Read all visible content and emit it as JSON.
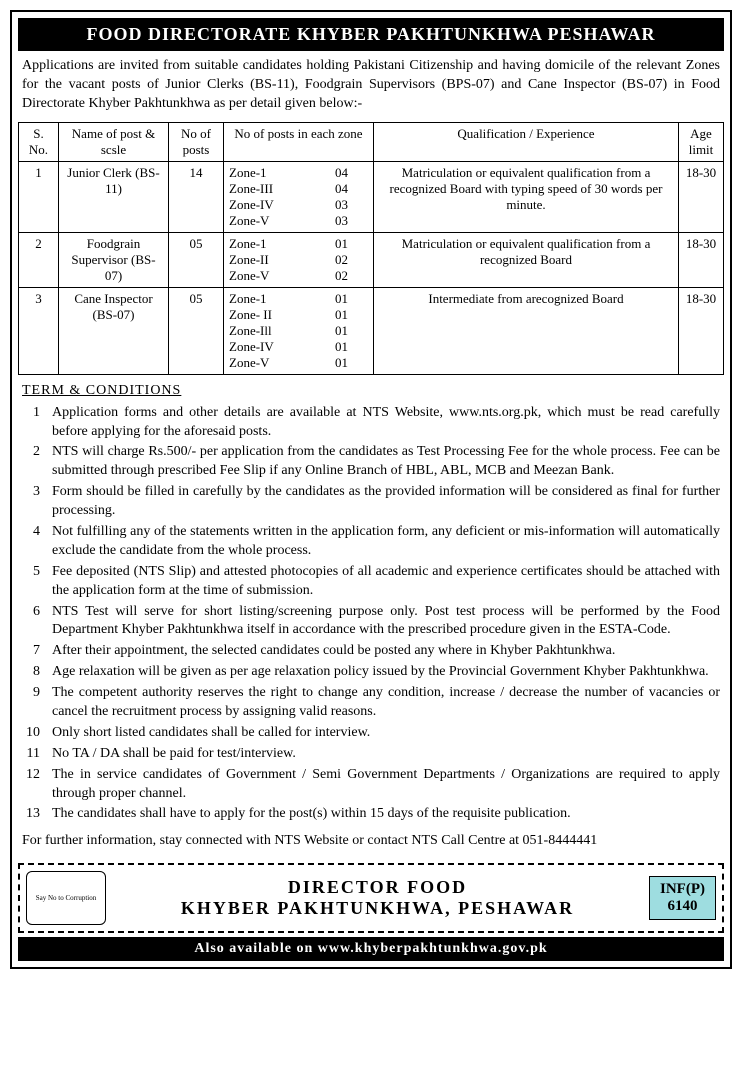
{
  "header": "FOOD DIRECTORATE KHYBER PAKHTUNKHWA  PESHAWAR",
  "intro": "Applications are invited from suitable candidates holding Pakistani Citizenship and having domicile of the relevant Zones for the vacant posts of Junior Clerks (BS-11), Foodgrain Supervisors (BPS-07) and  Cane Inspector (BS-07) in Food Directorate Khyber Pakhtunkhwa as per detail given below:-",
  "table_headers": {
    "sno": "S. No.",
    "name": "Name of post & scsle",
    "noposts": "No of posts",
    "zones": "No of posts in each zone",
    "qual": "Qualification / Experience",
    "age": "Age limit"
  },
  "rows": [
    {
      "sno": "1",
      "name": "Junior Clerk (BS-11)",
      "noposts": "14",
      "zones": [
        [
          "Zone-1",
          "04"
        ],
        [
          "Zone-III",
          "04"
        ],
        [
          "Zone-IV",
          "03"
        ],
        [
          "Zone-V",
          "03"
        ]
      ],
      "qual": "Matriculation or equivalent qualification from a recognized Board with typing speed of 30 words per minute.",
      "age": "18-30"
    },
    {
      "sno": "2",
      "name": "Foodgrain Supervisor (BS-07)",
      "noposts": "05",
      "zones": [
        [
          "Zone-1",
          "01"
        ],
        [
          "Zone-II",
          "02"
        ],
        [
          "Zone-V",
          "02"
        ]
      ],
      "qual": "Matriculation or equivalent qualification from a recognized Board",
      "age": "18-30"
    },
    {
      "sno": "3",
      "name": "Cane Inspector (BS-07)",
      "noposts": "05",
      "zones": [
        [
          "Zone-1",
          "01"
        ],
        [
          "Zone- II",
          "01"
        ],
        [
          "Zone-Ill",
          "01"
        ],
        [
          "Zone-IV",
          "01"
        ],
        [
          "Zone-V",
          "01"
        ]
      ],
      "qual": "Intermediate from arecognized Board",
      "age": "18-30"
    }
  ],
  "terms_title": "TERM  &  CONDITIONS",
  "conditions": [
    "Application forms and other details are available at NTS Website, www.nts.org.pk, which must be read carefully before applying for the aforesaid posts.",
    "NTS will charge Rs.500/- per application from the candidates as Test Processing Fee for the whole process. Fee can be submitted through prescribed Fee Slip if any Online Branch of HBL, ABL, MCB and Meezan Bank.",
    "Form should be filled in carefully by the candidates as the provided information will be considered as final for further processing.",
    "Not fulfilling any of the statements written in the application form, any deficient or mis-information will automatically exclude the candidate from the whole process.",
    "Fee deposited (NTS Slip) and attested photocopies of all academic and experience certificates should be attached with the application form at the time of submission.",
    "NTS Test will serve for short listing/screening purpose only. Post test process will be performed by the Food Department Khyber Pakhtunkhwa itself in accordance with the prescribed procedure given in the ESTA-Code.",
    "After their appointment, the selected candidates could be posted any where in Khyber Pakhtunkhwa.",
    "Age relaxation will be given as per age relaxation policy issued by the Provincial Government Khyber Pakhtunkhwa.",
    "The competent authority reserves the right to change any condition, increase / decrease the number of vacancies or cancel the recruitment process by assigning valid reasons.",
    "Only short listed candidates shall be called for interview.",
    "No TA / DA shall be paid for test/interview.",
    "The in service candidates of Government / Semi Government Departments / Organizations are required to apply through proper channel.",
    "The candidates shall have to apply for the post(s) within 15 days of the requisite publication."
  ],
  "footer_contact": "For further information, stay connected with NTS Website or contact NTS Call Centre at 051-8444441",
  "logo_text": "Say No to Corruption",
  "director_line1": "DIRECTOR  FOOD",
  "director_line2": "KHYBER  PAKHTUNKHWA,  PESHAWAR",
  "infp_label": "INF(P)",
  "infp_number": "6140",
  "bottom_bar": "Also  available  on  www.khyberpakhtunkhwa.gov.pk"
}
